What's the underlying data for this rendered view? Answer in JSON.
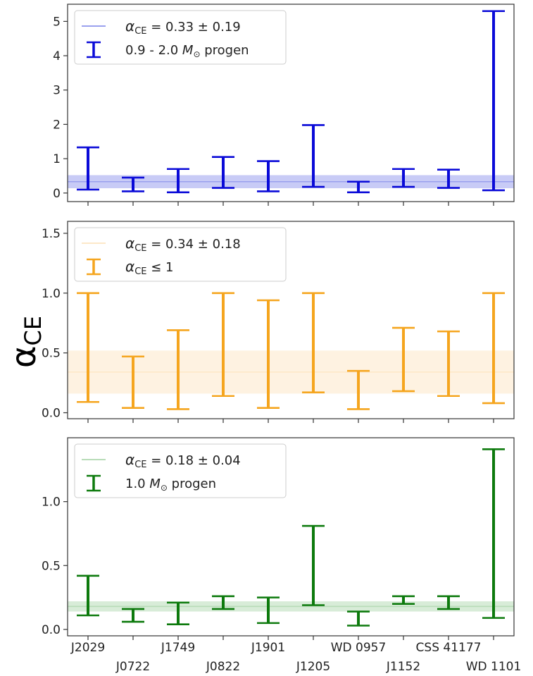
{
  "chart_data": [
    {
      "type": "errorbar",
      "ylim": [
        -0.25,
        5.5
      ],
      "yticks": [
        0,
        1,
        2,
        3,
        4,
        5
      ],
      "color": "#0a0ad8",
      "band_color": "#9aa0ee",
      "band": {
        "center": 0.33,
        "low": 0.14,
        "high": 0.52
      },
      "legend": {
        "line_text": "α_CE = 0.33 ± 0.19",
        "line_main": "α",
        "line_sub": "CE",
        "line_rest": " = 0.33 ± 0.19",
        "bar_text_pre": "0.9 - 2.0 ",
        "bar_text_m": "M",
        "bar_text_sub": "⊙",
        "bar_text_post": " progen",
        "position": "upper-left"
      },
      "lower": [
        0.1,
        0.05,
        0.02,
        0.15,
        0.05,
        0.18,
        0.02,
        0.18,
        0.15,
        0.08
      ],
      "upper": [
        1.33,
        0.45,
        0.7,
        1.05,
        0.93,
        1.98,
        0.33,
        0.7,
        0.68,
        5.3
      ]
    },
    {
      "type": "errorbar",
      "ylim": [
        -0.05,
        1.6
      ],
      "yticks": [
        0.0,
        0.5,
        1.0,
        1.5
      ],
      "ytick_labels": [
        "0.0",
        "0.5",
        "1.0",
        "1.5"
      ],
      "color": "#f5a51e",
      "band_color": "#fde8c8",
      "band": {
        "center": 0.34,
        "low": 0.16,
        "high": 0.52
      },
      "legend": {
        "line_main": "α",
        "line_sub": "CE",
        "line_rest": " = 0.34 ± 0.18",
        "bar_main": "α",
        "bar_sub": "CE",
        "bar_rest": " ≤ 1",
        "position": "upper-left"
      },
      "lower": [
        0.09,
        0.04,
        0.03,
        0.14,
        0.04,
        0.17,
        0.03,
        0.18,
        0.14,
        0.08
      ],
      "upper": [
        1.0,
        0.47,
        0.69,
        1.0,
        0.94,
        1.0,
        0.35,
        0.71,
        0.68,
        1.0
      ]
    },
    {
      "type": "errorbar",
      "ylim": [
        -0.05,
        1.5
      ],
      "yticks": [
        0.0,
        0.5,
        1.0
      ],
      "ytick_labels": [
        "0.0",
        "0.5",
        "1.0"
      ],
      "color": "#0d7a0d",
      "band_color": "#b8dcb8",
      "band": {
        "center": 0.18,
        "low": 0.14,
        "high": 0.22
      },
      "legend": {
        "line_main": "α",
        "line_sub": "CE",
        "line_rest": " = 0.18 ± 0.04",
        "bar_text_pre": "1.0 ",
        "bar_text_m": "M",
        "bar_text_sub": "⊙",
        "bar_text_post": " progen",
        "position": "upper-left"
      },
      "lower": [
        0.11,
        0.06,
        0.04,
        0.16,
        0.05,
        0.19,
        0.03,
        0.2,
        0.16,
        0.09
      ],
      "upper": [
        0.42,
        0.16,
        0.21,
        0.26,
        0.25,
        0.81,
        0.14,
        0.26,
        0.26,
        1.41
      ]
    }
  ],
  "categories": [
    "J2029",
    "J0722",
    "J1749",
    "J0822",
    "J1901",
    "J1205",
    "WD 0957",
    "J1152",
    "CSS 41177",
    "WD 1101"
  ],
  "ylabel_main": "α",
  "ylabel_sub": "CE"
}
